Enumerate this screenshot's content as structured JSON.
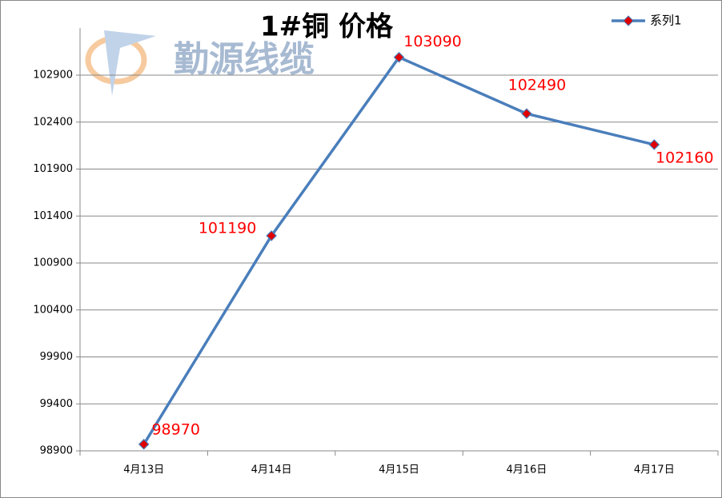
{
  "chart_data": {
    "type": "line",
    "title": "1#铜 价格",
    "watermark": "勤源线缆",
    "categories": [
      "4月13日",
      "4月14日",
      "4月15日",
      "4月16日",
      "4月17日"
    ],
    "series": [
      {
        "name": "系列1",
        "color": "#4a7ebb",
        "marker_color": "#e00000",
        "values": [
          98970,
          101190,
          103090,
          102490,
          102160
        ]
      }
    ],
    "ylim": [
      98900,
      103400
    ],
    "yticks": [
      98900,
      99400,
      99900,
      100400,
      100900,
      101400,
      101900,
      102400,
      102900
    ],
    "grid": true,
    "legend": "top-right",
    "label_color": "#ff0000"
  }
}
